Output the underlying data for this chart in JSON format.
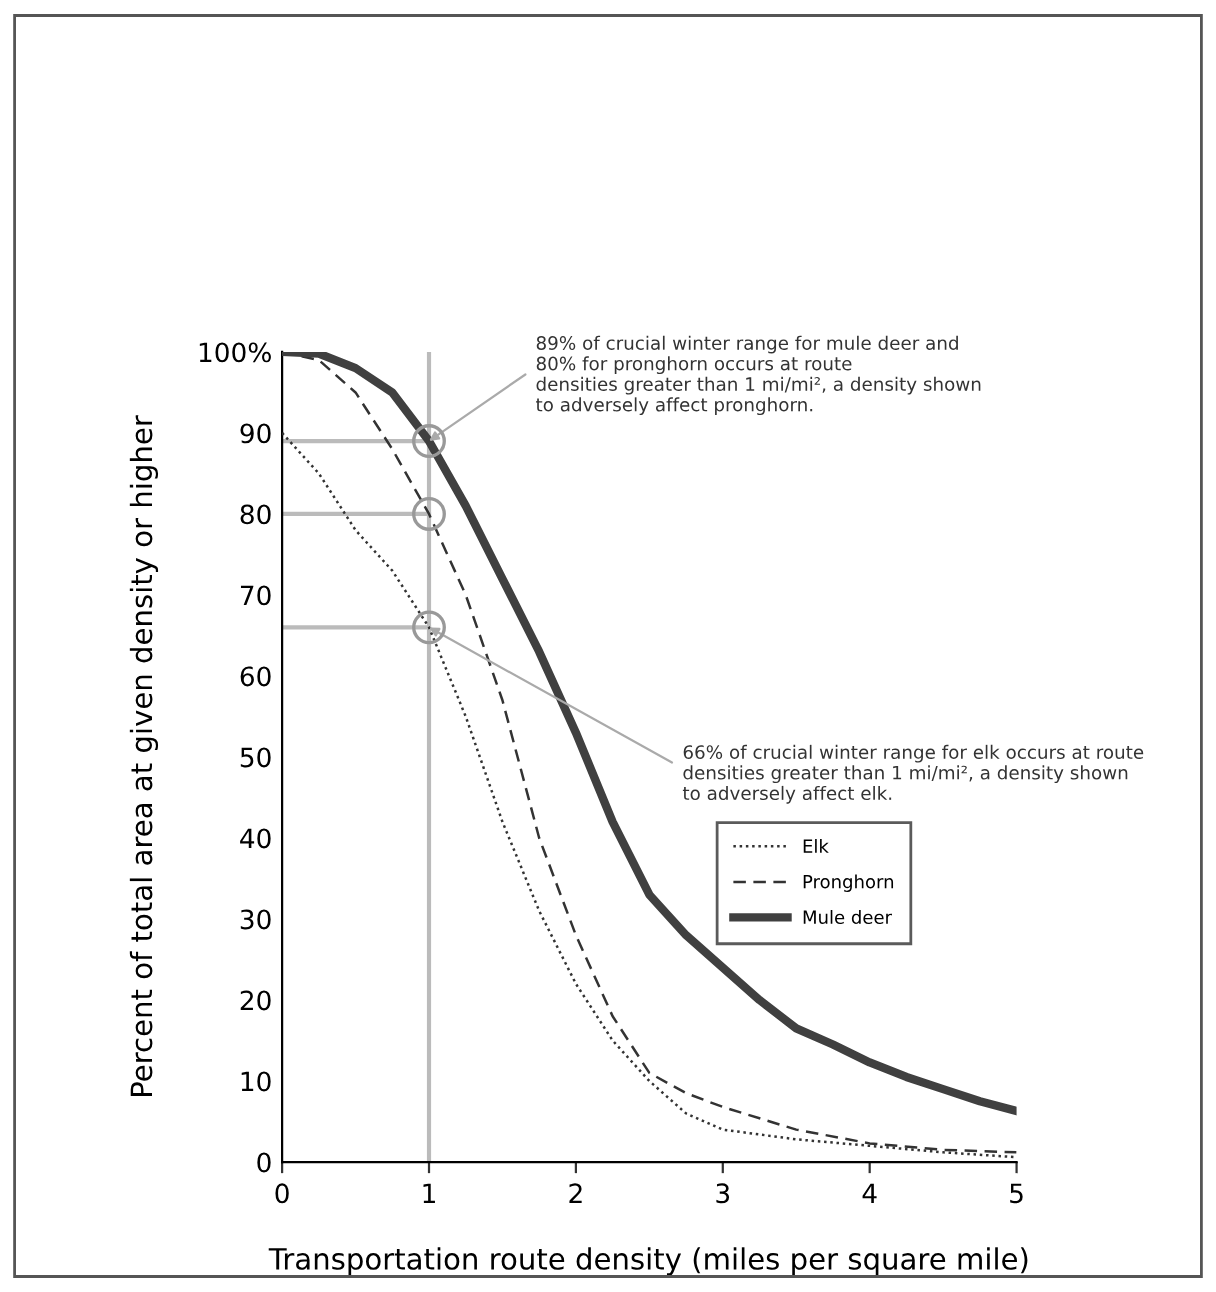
{
  "chart_data": {
    "type": "line",
    "xlabel": "Transportation route density (miles per square mile)",
    "ylabel": "Percent of total area at given density or higher",
    "xlim": [
      0,
      5
    ],
    "xticks": [
      0,
      1,
      2,
      3,
      4,
      5
    ],
    "ylim": [
      0,
      100
    ],
    "yticks": [
      0,
      10,
      20,
      30,
      40,
      50,
      60,
      70,
      80,
      90,
      {
        "value": 100,
        "label": "100%"
      }
    ],
    "grid": false,
    "legend": "right",
    "marker": "none",
    "series": [
      {
        "name": "Elk",
        "color": "#333333",
        "line_style": "dotted",
        "x": [
          0,
          0.25,
          0.5,
          0.75,
          1,
          1.25,
          1.5,
          1.75,
          2,
          2.25,
          2.5,
          2.75,
          3,
          3.5,
          4,
          4.5,
          5
        ],
        "values": [
          90,
          85,
          78,
          73,
          66,
          55,
          42,
          31,
          22,
          15,
          10,
          6,
          4,
          2.8,
          2,
          1.2,
          0.6
        ]
      },
      {
        "name": "Pronghorn",
        "color": "#333333",
        "line_style": "dashed",
        "x": [
          0,
          0.25,
          0.5,
          0.75,
          1,
          1.25,
          1.5,
          1.75,
          2,
          2.25,
          2.5,
          2.75,
          3,
          3.5,
          4,
          4.5,
          5
        ],
        "values": [
          100,
          99,
          95,
          88,
          80,
          70,
          57,
          40,
          28,
          18,
          11,
          8.5,
          6.8,
          4,
          2.3,
          1.5,
          1.2
        ]
      },
      {
        "name": "Mule deer",
        "color": "#404040",
        "line_style": "solid",
        "x": [
          0,
          0.25,
          0.5,
          0.75,
          1,
          1.25,
          1.5,
          1.75,
          2,
          2.25,
          2.5,
          2.75,
          3,
          3.25,
          3.5,
          3.75,
          4,
          4.25,
          4.5,
          4.75,
          5
        ],
        "values": [
          100,
          99.8,
          98,
          95,
          89,
          81,
          72,
          63,
          53,
          42,
          33,
          28,
          24,
          20,
          16.5,
          14.5,
          12.3,
          10.5,
          9,
          7.5,
          6.3
        ]
      }
    ],
    "ref_lines": [
      {
        "axis": "x",
        "value": 1,
        "color": "#bbbbbb"
      },
      {
        "axis": "y",
        "value": 89,
        "color": "#bbbbbb"
      },
      {
        "axis": "y",
        "value": 80,
        "color": "#bbbbbb"
      },
      {
        "axis": "y",
        "value": 66,
        "color": "#bbbbbb"
      }
    ],
    "annotations": [
      {
        "text": "89% of crucial winter range for mule deer and\n80% for pronghorn occurs at route\ndensities greater than 1 mi/mi², a density shown\nto adversely affect pronghorn.",
        "x": 1,
        "y": 89
      },
      {
        "text": "66% of crucial winter range for elk occurs at route\ndensities greater than 1 mi/mi², a density shown\nto adversely affect elk.",
        "x": 1,
        "y": 66
      }
    ]
  }
}
